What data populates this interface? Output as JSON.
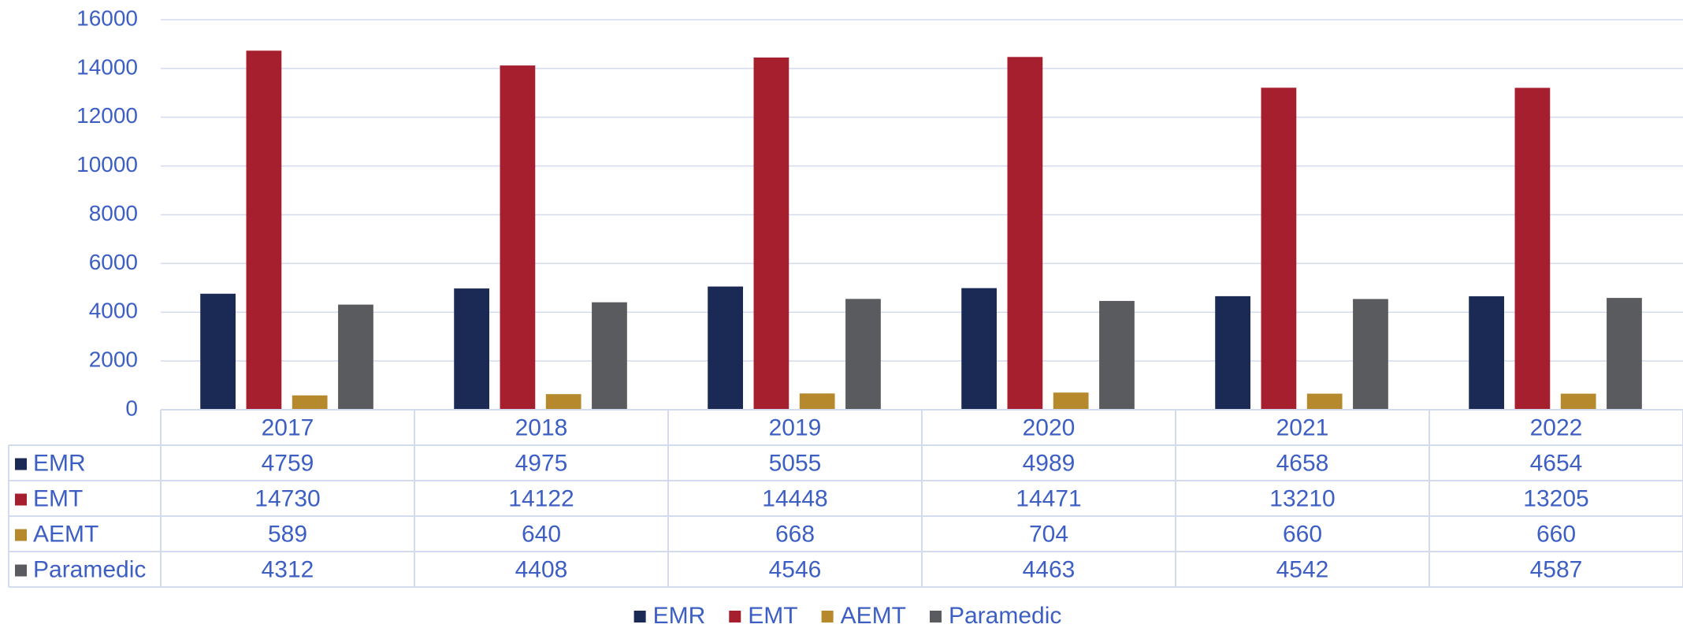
{
  "chart_data": {
    "type": "bar",
    "categories": [
      "2017",
      "2018",
      "2019",
      "2020",
      "2021",
      "2022"
    ],
    "series": [
      {
        "name": "EMR",
        "color": "#1b2a55",
        "values": [
          4759,
          4975,
          5055,
          4989,
          4658,
          4654
        ]
      },
      {
        "name": "EMT",
        "color": "#a61f2f",
        "values": [
          14730,
          14122,
          14448,
          14471,
          13210,
          13205
        ]
      },
      {
        "name": "AEMT",
        "color": "#b5892c",
        "values": [
          589,
          640,
          668,
          704,
          660,
          660
        ]
      },
      {
        "name": "Paramedic",
        "color": "#5a5b5e",
        "values": [
          4312,
          4408,
          4546,
          4463,
          4542,
          4587
        ]
      }
    ],
    "ylim": [
      0,
      16000
    ],
    "yticks": [
      0,
      2000,
      4000,
      6000,
      8000,
      10000,
      12000,
      14000,
      16000
    ],
    "grid": true,
    "legend": "bottom",
    "data_table": true
  }
}
